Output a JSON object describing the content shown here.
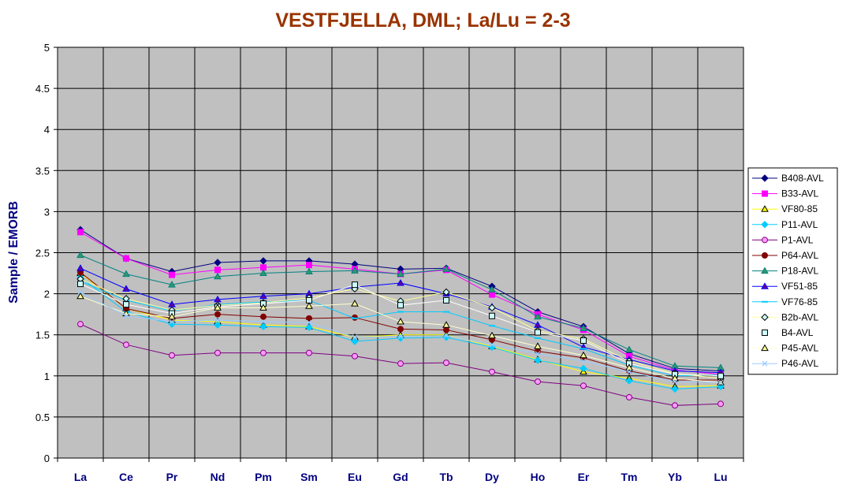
{
  "chart_data": {
    "type": "line",
    "title": "VESTFJELLA, DML; La/Lu = 2-3",
    "xlabel": "",
    "ylabel": "Sample / EMORB",
    "ylim": [
      0,
      5
    ],
    "yticks": [
      "0",
      "0.5",
      "1",
      "1.5",
      "2",
      "2.5",
      "3",
      "3.5",
      "4",
      "4.5",
      "5"
    ],
    "categories": [
      "La",
      "Ce",
      "Pr",
      "Nd",
      "Pm",
      "Sm",
      "Eu",
      "Gd",
      "Tb",
      "Dy",
      "Ho",
      "Er",
      "Tm",
      "Yb",
      "Lu"
    ],
    "grid": true,
    "legend_position": "right",
    "plot_background": "#c0c0c0",
    "series": [
      {
        "name": "B408-AVL",
        "color": "#000080",
        "marker": "diamond",
        "marker_fill": "#000080",
        "values": [
          2.78,
          2.43,
          2.27,
          2.38,
          2.4,
          2.4,
          2.36,
          2.3,
          2.31,
          2.09,
          1.78,
          1.6,
          1.27,
          1.09,
          1.06
        ]
      },
      {
        "name": "B33-AVL",
        "color": "#ff00ff",
        "marker": "square",
        "marker_fill": "#ff00ff",
        "values": [
          2.75,
          2.43,
          2.23,
          2.29,
          2.32,
          2.35,
          2.3,
          2.24,
          2.29,
          1.99,
          1.75,
          1.56,
          1.24,
          1.07,
          1.02
        ]
      },
      {
        "name": "VF80-85",
        "color": "#ffff00",
        "marker": "triangle",
        "marker_fill": "#ffff00",
        "values": [
          2.25,
          1.82,
          1.68,
          1.66,
          1.62,
          1.6,
          1.47,
          1.5,
          1.5,
          1.36,
          1.2,
          1.05,
          0.97,
          0.87,
          0.88
        ]
      },
      {
        "name": "P11-AVL",
        "color": "#00ccff",
        "marker": "diamond",
        "marker_fill": "#00ccff",
        "values": [
          2.2,
          1.78,
          1.63,
          1.62,
          1.6,
          1.59,
          1.42,
          1.46,
          1.47,
          1.35,
          1.19,
          1.09,
          0.94,
          0.84,
          0.87
        ]
      },
      {
        "name": "P1-AVL",
        "color": "#800080",
        "marker": "circle",
        "marker_fill": "#ff99ff",
        "values": [
          1.63,
          1.38,
          1.25,
          1.28,
          1.28,
          1.28,
          1.24,
          1.15,
          1.16,
          1.05,
          0.93,
          0.88,
          0.74,
          0.64,
          0.66
        ]
      },
      {
        "name": "P64-AVL",
        "color": "#800000",
        "marker": "circle",
        "marker_fill": "#800000",
        "values": [
          2.26,
          1.82,
          1.7,
          1.75,
          1.72,
          1.7,
          1.71,
          1.57,
          1.56,
          1.44,
          1.3,
          1.22,
          1.06,
          0.95,
          0.95
        ]
      },
      {
        "name": "P18-AVL",
        "color": "#008080",
        "marker": "triangle",
        "marker_fill": "#339966",
        "values": [
          2.47,
          2.24,
          2.11,
          2.21,
          2.25,
          2.27,
          2.28,
          2.24,
          2.3,
          2.05,
          1.72,
          1.58,
          1.32,
          1.12,
          1.1
        ]
      },
      {
        "name": "VF51-85",
        "color": "#0000ff",
        "marker": "triangle",
        "marker_fill": "#660099",
        "values": [
          2.31,
          2.06,
          1.87,
          1.93,
          1.97,
          2.0,
          2.08,
          2.13,
          2.0,
          1.84,
          1.62,
          1.35,
          1.2,
          1.06,
          1.04
        ]
      },
      {
        "name": "VF76-85",
        "color": "#00ccff",
        "marker": "dash",
        "marker_fill": "#00ccff",
        "values": [
          2.15,
          1.92,
          1.79,
          1.87,
          1.9,
          1.92,
          1.7,
          1.78,
          1.78,
          1.61,
          1.46,
          1.33,
          1.13,
          1.0,
          1.01
        ]
      },
      {
        "name": "B2b-AVL",
        "color": "#ffff99",
        "marker": "diamond",
        "marker_fill": "#ccffff",
        "values": [
          2.18,
          1.94,
          1.8,
          1.86,
          1.89,
          1.95,
          2.06,
          1.91,
          2.02,
          1.83,
          1.55,
          1.45,
          1.18,
          1.03,
          0.97
        ]
      },
      {
        "name": "B4-AVL",
        "color": "#ffffff",
        "marker": "square",
        "marker_fill": "#ccffff",
        "values": [
          2.12,
          1.87,
          1.76,
          1.84,
          1.88,
          1.92,
          2.11,
          1.86,
          1.92,
          1.73,
          1.53,
          1.43,
          1.15,
          1.02,
          1.0
        ]
      },
      {
        "name": "P45-AVL",
        "color": "#ffffcc",
        "marker": "triangle",
        "marker_fill": "#ffff99",
        "values": [
          1.97,
          1.76,
          1.72,
          1.83,
          1.83,
          1.85,
          1.88,
          1.66,
          1.62,
          1.49,
          1.36,
          1.25,
          1.1,
          0.97,
          0.92
        ]
      },
      {
        "name": "P46-AVL",
        "color": "#99ccff",
        "marker": "x",
        "marker_fill": "#99ccff",
        "values": [
          2.02,
          1.73,
          1.66,
          1.68,
          1.66,
          1.65,
          1.47,
          1.48,
          1.49,
          1.38,
          1.27,
          1.18,
          1.05,
          0.93,
          0.92
        ]
      }
    ]
  }
}
